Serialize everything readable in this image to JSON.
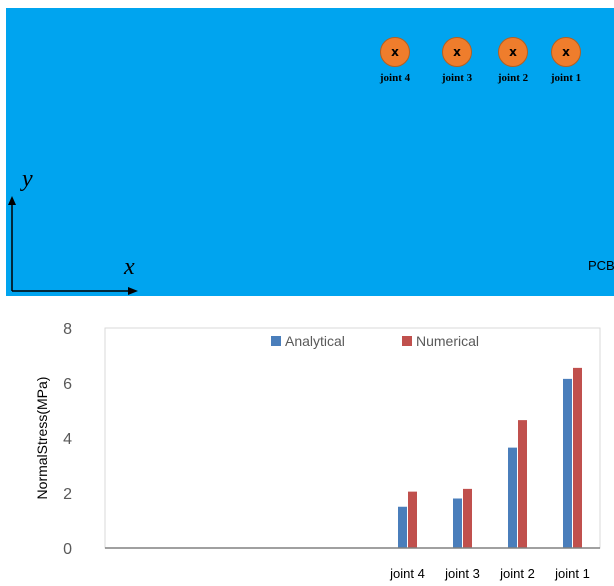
{
  "diagram": {
    "pcb_label": "PCB",
    "x_axis_label": "x",
    "y_axis_label": "y",
    "joint_marker": "x",
    "joints": [
      "joint 4",
      "joint 3",
      "joint 2",
      "joint 1"
    ],
    "colors": {
      "background": "#00a4ef",
      "joint_fill": "#ef7d2c"
    }
  },
  "chart_data": {
    "type": "bar",
    "categories": [
      "",
      "",
      "",
      "",
      "",
      "joint 4",
      "joint 3",
      "joint 2",
      "joint 1"
    ],
    "series": [
      {
        "name": "Analytical",
        "color": "#4a7ebb",
        "values": [
          0,
          0,
          0,
          0,
          0,
          1.5,
          1.8,
          3.65,
          6.15
        ]
      },
      {
        "name": "Numerical",
        "color": "#c0504d",
        "values": [
          0,
          0,
          0,
          0,
          0,
          2.05,
          2.15,
          4.65,
          6.55
        ]
      }
    ],
    "title": "",
    "xlabel": "",
    "ylabel": "NormalStress(MPa)",
    "ylim": [
      0,
      8
    ],
    "yticks": [
      "0",
      "2",
      "4",
      "6",
      "8"
    ],
    "grid": false,
    "legend": "top-center"
  }
}
